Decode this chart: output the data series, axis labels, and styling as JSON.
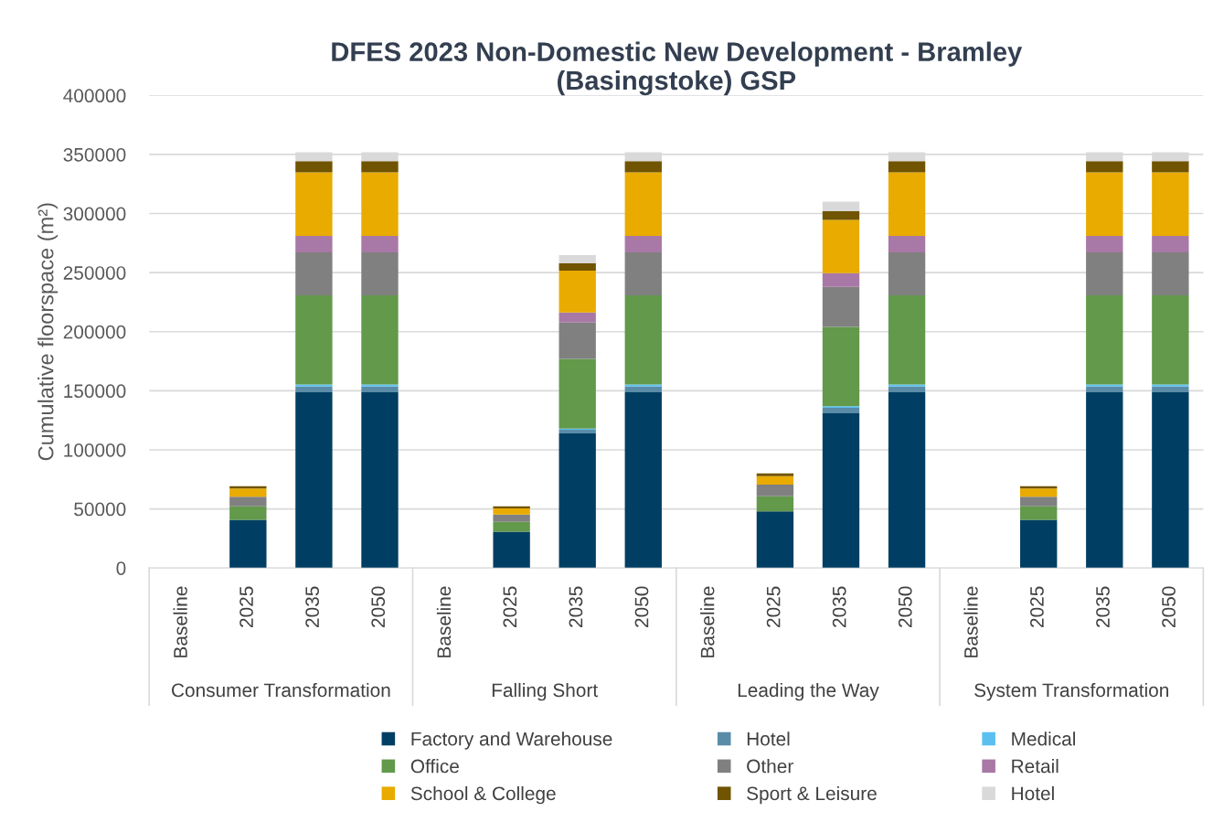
{
  "chart_data": {
    "type": "bar",
    "stacked": true,
    "title": "DFES 2023 Non-Domestic New Development - Bramley\n(Basingstoke) GSP",
    "ylabel": "Cumulative floorspace (m²)",
    "categories": [
      "Baseline",
      "2025",
      "2035",
      "2050",
      "Baseline",
      "2025",
      "2035",
      "2050",
      "Baseline",
      "2025",
      "2035",
      "2050",
      "Baseline",
      "2025",
      "2035",
      "2050"
    ],
    "annotations": [
      "Consumer Transformation",
      "Falling Short",
      "Leading the Way",
      "System Transformation"
    ],
    "series": [
      {
        "name": "Factory and Warehouse",
        "color": "#003f63",
        "values": [
          0,
          40800,
          148800,
          148800,
          0,
          30700,
          113900,
          148800,
          0,
          48000,
          131000,
          148800,
          0,
          40800,
          148800,
          148800
        ]
      },
      {
        "name": "Hotel",
        "color": "#5a8ca8",
        "values": [
          0,
          0,
          4700,
          4700,
          0,
          0,
          3100,
          4700,
          0,
          0,
          4600,
          4700,
          0,
          0,
          4700,
          4700
        ]
      },
      {
        "name": "Medical",
        "color": "#5bc0f0",
        "values": [
          0,
          0,
          1800,
          1800,
          0,
          0,
          1000,
          1800,
          0,
          0,
          1300,
          1800,
          0,
          0,
          1800,
          1800
        ]
      },
      {
        "name": "Office",
        "color": "#62994a",
        "values": [
          0,
          11400,
          75400,
          75400,
          0,
          8300,
          58900,
          75400,
          0,
          12700,
          67200,
          75400,
          0,
          11400,
          75400,
          75400
        ]
      },
      {
        "name": "Other",
        "color": "#808080",
        "values": [
          0,
          8200,
          36400,
          36400,
          0,
          6200,
          30800,
          36400,
          0,
          9800,
          33800,
          36400,
          0,
          8200,
          36400,
          36400
        ]
      },
      {
        "name": "Retail",
        "color": "#a878a6",
        "values": [
          0,
          0,
          14000,
          14000,
          0,
          0,
          8500,
          14000,
          0,
          0,
          11600,
          14000,
          0,
          0,
          14000,
          14000
        ]
      },
      {
        "name": "School & College",
        "color": "#e9ab00",
        "values": [
          0,
          6800,
          53700,
          53700,
          0,
          5200,
          35400,
          53700,
          0,
          7200,
          45000,
          53700,
          0,
          6800,
          53700,
          53700
        ]
      },
      {
        "name": "Sport & Leisure",
        "color": "#705400",
        "values": [
          0,
          2000,
          9600,
          9600,
          0,
          1800,
          6200,
          9600,
          0,
          2400,
          7700,
          9600,
          0,
          2000,
          9600,
          9600
        ]
      },
      {
        "name": "Hotel",
        "color": "#d9d9d9",
        "values": [
          0,
          0,
          7500,
          7500,
          0,
          0,
          7000,
          7500,
          0,
          0,
          7800,
          7500,
          0,
          0,
          7500,
          7500
        ]
      }
    ],
    "ylim": [
      0,
      400000
    ],
    "yticks": [
      0,
      50000,
      100000,
      150000,
      200000,
      250000,
      300000,
      350000,
      400000
    ],
    "grid": "y",
    "legend": "bottom"
  }
}
